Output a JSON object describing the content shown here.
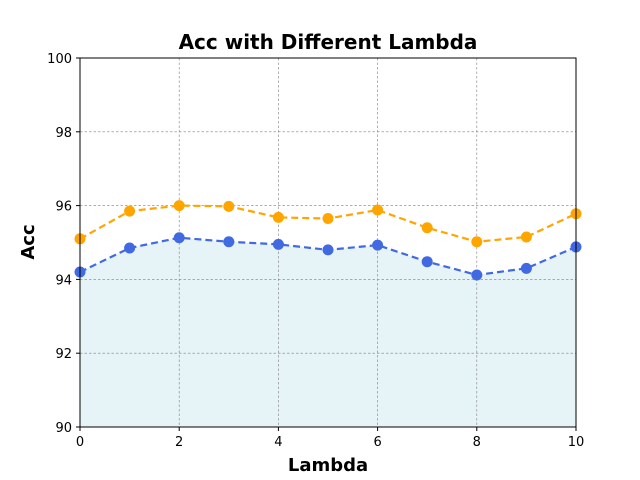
{
  "chart_data": {
    "type": "line",
    "title": "Acc with Different Lambda",
    "xlabel": "Lambda",
    "ylabel": "Acc",
    "xlim": [
      0,
      10
    ],
    "ylim": [
      90,
      100
    ],
    "xticks": [
      0,
      2,
      4,
      6,
      8,
      10
    ],
    "yticks": [
      90,
      92,
      94,
      96,
      98,
      100
    ],
    "grid": true,
    "x": [
      0,
      1,
      2,
      3,
      4,
      5,
      6,
      7,
      8,
      9,
      10
    ],
    "series": [
      {
        "color": "#ffa500",
        "line_style": "dashed",
        "values": [
          95.1,
          95.85,
          96.0,
          95.98,
          95.68,
          95.65,
          95.88,
          95.4,
          95.02,
          95.15,
          95.78
        ]
      },
      {
        "color": "#4169e1",
        "line_style": "dashed",
        "fill_below": "#add8e6",
        "values": [
          94.2,
          94.85,
          95.13,
          95.02,
          94.95,
          94.8,
          94.93,
          94.48,
          94.12,
          94.3,
          94.88
        ]
      }
    ]
  }
}
